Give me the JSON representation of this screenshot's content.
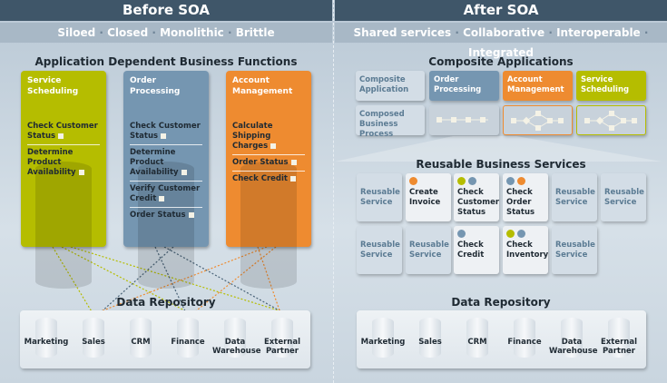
{
  "before": {
    "header": "Before SOA",
    "tagline": [
      "Siloed",
      "Closed",
      "Monolithic",
      "Brittle"
    ],
    "section_title": "Application Dependent Business Functions",
    "columns": [
      {
        "title": "Service Scheduling",
        "color": "#b5bd00",
        "functions": [
          "Check Customer Status",
          "Determine Product Availability"
        ]
      },
      {
        "title": "Order Processing",
        "color": "#7596b1",
        "functions": [
          "Check Customer Status",
          "Determine Product Availability",
          "Verify Customer Credit",
          "Order Status"
        ]
      },
      {
        "title": "Account Management",
        "color": "#ee8b30",
        "functions": [
          "Calculate Shipping Charges",
          "Order Status",
          "Check Credit"
        ]
      }
    ],
    "repository_title": "Data Repository",
    "repository": [
      "Marketing",
      "Sales",
      "CRM",
      "Finance",
      "Data Warehouse",
      "External Partner"
    ]
  },
  "after": {
    "header": "After SOA",
    "tagline": [
      "Shared services",
      "Collaborative",
      "Interoperable",
      "Integrated"
    ],
    "composite_title": "Composite Applications",
    "row_labels": [
      "Composite Application",
      "Composed Business Process"
    ],
    "apps": [
      {
        "title": "Order Processing",
        "color": "#7596b1"
      },
      {
        "title": "Account Management",
        "color": "#ee8b30"
      },
      {
        "title": "Service Scheduling",
        "color": "#b5bd00"
      }
    ],
    "services_title": "Reusable Business Services",
    "services": [
      [
        {
          "label": "Reusable Service"
        },
        {
          "label": "Create Invoice",
          "dots": [
            "#ee8b30"
          ]
        },
        {
          "label": "Check Customer Status",
          "dots": [
            "#b5bd00",
            "#7596b1"
          ]
        },
        {
          "label": "Check Order Status",
          "dots": [
            "#7596b1",
            "#ee8b30"
          ]
        },
        {
          "label": "Reusable Service"
        },
        {
          "label": "Reusable Service"
        }
      ],
      [
        {
          "label": "Reusable Service"
        },
        {
          "label": "Reusable Service"
        },
        {
          "label": "Check Credit",
          "dots": [
            "#7596b1"
          ]
        },
        {
          "label": "Check Inventory",
          "dots": [
            "#b5bd00",
            "#7596b1"
          ]
        },
        {
          "label": "Reusable Service"
        }
      ]
    ],
    "repository_title": "Data Repository",
    "repository": [
      "Marketing",
      "Sales",
      "CRM",
      "Finance",
      "Data Warehouse",
      "External Partner"
    ]
  }
}
